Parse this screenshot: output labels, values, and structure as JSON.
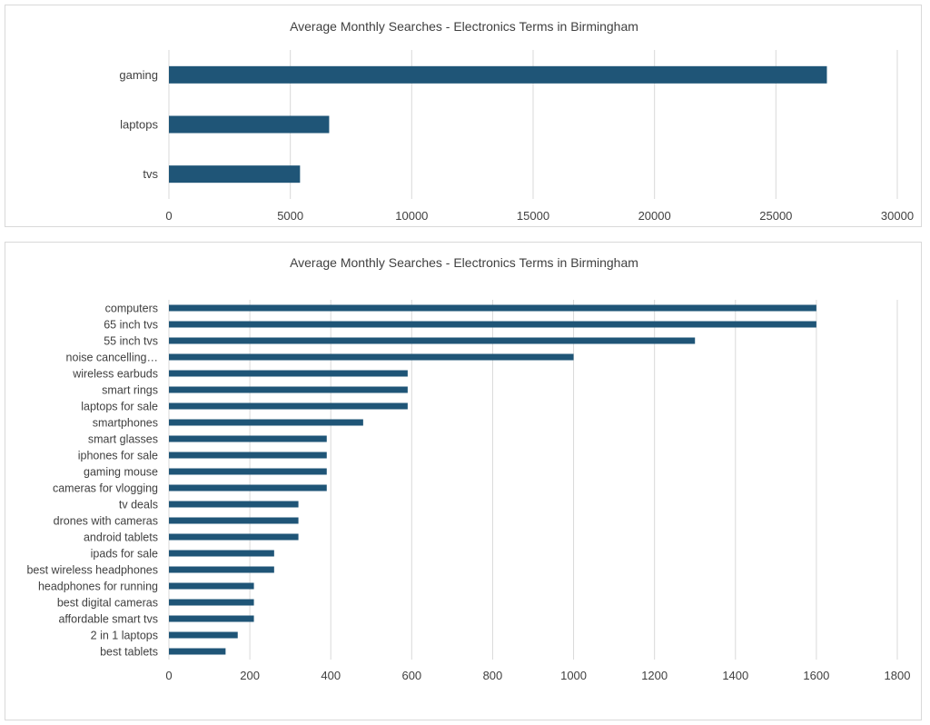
{
  "colors": {
    "bar": "#1f5577",
    "grid": "#d9d9d9",
    "text": "#404040",
    "border": "#d9d9d9"
  },
  "chart_data": [
    {
      "type": "bar",
      "orientation": "horizontal",
      "title": "Average Monthly Searches - Electronics Terms in Birmingham",
      "categories": [
        "gaming",
        "laptops",
        "tvs"
      ],
      "values": [
        27100,
        6600,
        5400
      ],
      "xlim": [
        0,
        30000
      ],
      "xticks": [
        0,
        5000,
        10000,
        15000,
        20000,
        25000,
        30000
      ],
      "xlabel": "",
      "ylabel": "",
      "grid": "vertical",
      "legend": "none"
    },
    {
      "type": "bar",
      "orientation": "horizontal",
      "title": "Average Monthly Searches - Electronics Terms in Birmingham",
      "categories": [
        "computers",
        "65 inch tvs",
        "55 inch tvs",
        "noise cancelling…",
        "wireless earbuds",
        "smart rings",
        "laptops for sale",
        "smartphones",
        "smart glasses",
        "iphones for sale",
        "gaming mouse",
        "cameras for vlogging",
        "tv deals",
        "drones with cameras",
        "android tablets",
        "ipads for sale",
        "best wireless headphones",
        "headphones for running",
        "best digital cameras",
        "affordable smart tvs",
        "2 in 1 laptops",
        "best tablets"
      ],
      "values": [
        1600,
        1600,
        1300,
        1000,
        590,
        590,
        590,
        480,
        390,
        390,
        390,
        390,
        320,
        320,
        320,
        260,
        260,
        210,
        210,
        210,
        170,
        140
      ],
      "xlim": [
        0,
        1800
      ],
      "xticks": [
        0,
        200,
        400,
        600,
        800,
        1000,
        1200,
        1400,
        1600,
        1800
      ],
      "xlabel": "",
      "ylabel": "",
      "grid": "vertical",
      "legend": "none"
    }
  ]
}
